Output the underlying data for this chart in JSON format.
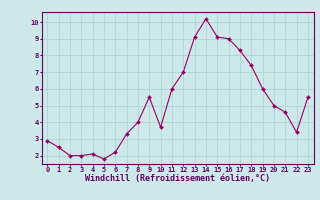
{
  "x": [
    0,
    1,
    2,
    3,
    4,
    5,
    6,
    7,
    8,
    9,
    10,
    11,
    12,
    13,
    14,
    15,
    16,
    17,
    18,
    19,
    20,
    21,
    22,
    23
  ],
  "y": [
    2.9,
    2.5,
    2.0,
    2.0,
    2.1,
    1.8,
    2.2,
    3.3,
    4.0,
    5.5,
    3.7,
    6.0,
    7.0,
    9.1,
    10.2,
    9.1,
    9.0,
    8.3,
    7.4,
    6.0,
    5.0,
    4.6,
    3.4,
    5.5
  ],
  "line_color": "#990066",
  "marker": "D",
  "marker_size": 2.0,
  "bg_color": "#cce8e8",
  "grid_color": "#b0d4d4",
  "xlabel": "Windchill (Refroidissement éolien,°C)",
  "xlabel_color": "#660066",
  "ylabel_ticks": [
    2,
    3,
    4,
    5,
    6,
    7,
    8,
    9,
    10
  ],
  "xtick_labels": [
    "0",
    "1",
    "2",
    "3",
    "4",
    "5",
    "6",
    "7",
    "8",
    "9",
    "10",
    "11",
    "12",
    "13",
    "14",
    "15",
    "16",
    "17",
    "18",
    "19",
    "20",
    "21",
    "22",
    "23"
  ],
  "ylim": [
    1.5,
    10.6
  ],
  "xlim": [
    -0.5,
    23.5
  ],
  "tick_color": "#660066",
  "axis_color": "#660066",
  "spine_color": "#660066"
}
